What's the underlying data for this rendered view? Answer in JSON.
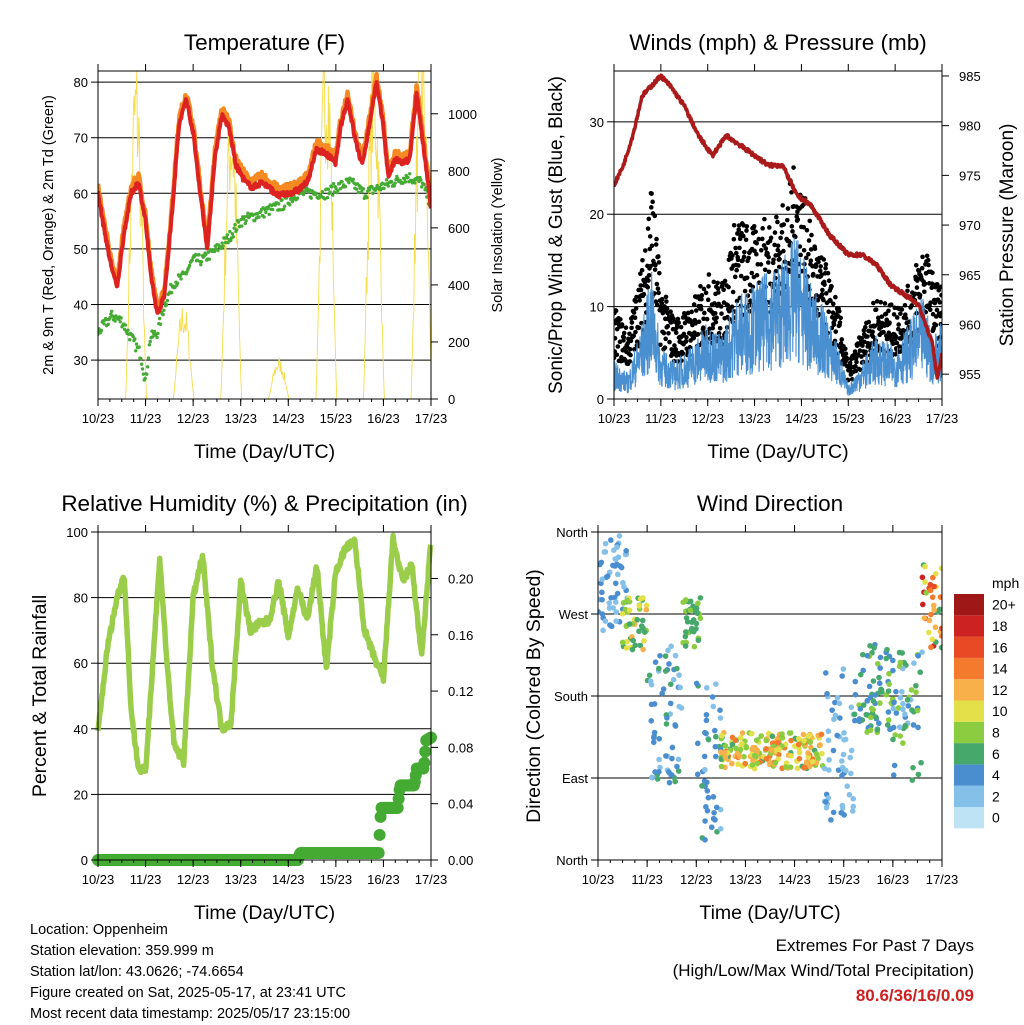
{
  "chart_data": [
    {
      "type": "line",
      "title": "Temperature (F)",
      "xlabel": "Time (Day/UTC)",
      "ylabel": "2m & 9m T (Red, Orange) & 2m Td (Green)",
      "y2label": "Solar Insolation (Yellow)",
      "x_ticks": [
        "10/23",
        "11/23",
        "12/23",
        "13/23",
        "14/23",
        "15/23",
        "16/23",
        "17/23"
      ],
      "ylim": [
        23,
        82
      ],
      "y_ticks": [
        30,
        40,
        50,
        60,
        70,
        80
      ],
      "y2lim": [
        0,
        1150
      ],
      "y2_ticks": [
        0,
        200,
        400,
        600,
        800,
        1000
      ],
      "grid": true,
      "colors": {
        "t2m": "#dd2222",
        "t9m": "#f58a22",
        "td": "#44aa33",
        "solar": "#f5dc4a"
      },
      "series": [
        {
          "key": "t2m",
          "x": [
            0,
            0.1,
            0.25,
            0.4,
            0.55,
            0.7,
            0.85,
            1.0,
            1.1,
            1.25,
            1.4,
            1.55,
            1.7,
            1.85,
            2.0,
            2.15,
            2.3,
            2.45,
            2.6,
            2.75,
            2.9,
            3.1,
            3.25,
            3.45,
            3.6,
            3.8,
            4.0,
            4.2,
            4.4,
            4.6,
            4.8,
            5.0,
            5.1,
            5.25,
            5.4,
            5.55,
            5.7,
            5.85,
            6.0,
            6.1,
            6.25,
            6.4,
            6.55,
            6.7,
            6.85,
            6.95,
            7.0
          ],
          "values": [
            60,
            55,
            48,
            43,
            53,
            60,
            62,
            55,
            46,
            38,
            42,
            56,
            72,
            77,
            71,
            60,
            50,
            66,
            74,
            72,
            65,
            62,
            61,
            62,
            61,
            59.5,
            60,
            60.5,
            62,
            68,
            67,
            65.5,
            72,
            77,
            70,
            65,
            72,
            80,
            72,
            63,
            66,
            65.5,
            66,
            78,
            68,
            61,
            57
          ]
        },
        {
          "key": "td",
          "x": [
            0,
            0.3,
            0.5,
            0.7,
            0.9,
            1.0,
            1.1,
            1.25,
            1.4,
            1.6,
            1.8,
            2.0,
            2.2,
            2.5,
            2.75,
            3.0,
            3.3,
            3.6,
            3.9,
            4.2,
            4.5,
            4.8,
            5.0,
            5.3,
            5.6,
            5.9,
            6.2,
            6.5,
            6.8,
            7.0
          ],
          "values": [
            35,
            38,
            37,
            34,
            31,
            26,
            34,
            35,
            40,
            44,
            45,
            48,
            48,
            50,
            52,
            55,
            56,
            57,
            58,
            60,
            60,
            60,
            61,
            62,
            60,
            61,
            62,
            63,
            62,
            58
          ]
        },
        {
          "key": "solar",
          "x": [
            0.58,
            0.8,
            1.02,
            1.58,
            1.8,
            2.02,
            2.58,
            2.8,
            3.02,
            3.58,
            3.8,
            4.02,
            4.58,
            4.8,
            5.02,
            5.58,
            5.8,
            6.02,
            6.58,
            6.8,
            7.02
          ],
          "values": [
            0,
            1000,
            0,
            0,
            280,
            0,
            0,
            900,
            0,
            0,
            120,
            0,
            0,
            1100,
            0,
            0,
            1050,
            0,
            0,
            1100,
            0
          ]
        }
      ]
    },
    {
      "type": "line",
      "title": "Winds (mph) & Pressure (mb)",
      "xlabel": "Time (Day/UTC)",
      "ylabel": "Sonic/Prop Wind & Gust (Blue, Black)",
      "y2label": "Station Pressure (Maroon)",
      "x_ticks": [
        "10/23",
        "11/23",
        "12/23",
        "13/23",
        "14/23",
        "15/23",
        "16/23",
        "17/23"
      ],
      "ylim": [
        0,
        35.5
      ],
      "y_ticks": [
        0,
        10,
        20,
        30
      ],
      "y2lim": [
        952.5,
        985.5
      ],
      "y2_ticks": [
        955,
        960,
        965,
        970,
        975,
        980,
        985
      ],
      "grid": true,
      "colors": {
        "wind": "#4a90d0",
        "gust": "#000000",
        "pressure": "#aa1a1a"
      },
      "series": [
        {
          "key": "wind",
          "x": [
            0,
            0.3,
            0.6,
            0.8,
            1.0,
            1.3,
            1.6,
            2.0,
            2.3,
            2.6,
            3.0,
            3.3,
            3.6,
            3.9,
            4.2,
            4.5,
            4.8,
            5.0,
            5.3,
            5.6,
            6.0,
            6.3,
            6.6,
            6.8,
            7.0
          ],
          "values": [
            3,
            2,
            6,
            10,
            4,
            3,
            4,
            6,
            5,
            8,
            9,
            10,
            11,
            13,
            9,
            7,
            4,
            1,
            3,
            5,
            4,
            6,
            8,
            5,
            6
          ]
        },
        {
          "key": "gust",
          "x": [
            0,
            0.3,
            0.6,
            0.8,
            1.0,
            1.3,
            1.6,
            2.0,
            2.3,
            2.6,
            3.0,
            3.3,
            3.6,
            3.9,
            4.2,
            4.5,
            4.8,
            5.0,
            5.3,
            5.6,
            6.0,
            6.3,
            6.6,
            6.8,
            7.0
          ],
          "values": [
            8,
            6,
            12,
            20,
            10,
            7,
            8,
            11,
            10,
            16,
            15,
            16,
            17,
            21,
            15,
            12,
            8,
            3,
            6,
            9,
            8,
            10,
            14,
            11,
            10
          ]
        },
        {
          "key": "pressure",
          "x": [
            0,
            0.2,
            0.4,
            0.6,
            0.8,
            1.0,
            1.2,
            1.5,
            1.8,
            2.1,
            2.4,
            2.7,
            3.0,
            3.3,
            3.6,
            3.9,
            4.2,
            4.6,
            5.0,
            5.3,
            5.6,
            5.9,
            6.2,
            6.5,
            6.8,
            6.9,
            7.0
          ],
          "values": [
            974,
            976,
            979,
            983,
            984,
            985,
            984,
            982,
            979,
            977,
            979,
            978,
            977,
            976,
            976,
            973,
            972,
            969,
            967,
            967,
            966,
            964,
            963,
            962,
            958,
            954.5,
            957
          ]
        }
      ]
    },
    {
      "type": "line",
      "title": "Relative Humidity (%) & Precipitation (in)",
      "xlabel": "Time (Day/UTC)",
      "ylabel": "Percent & Total Rainfall",
      "x_ticks": [
        "10/23",
        "11/23",
        "12/23",
        "13/23",
        "14/23",
        "15/23",
        "16/23",
        "17/23"
      ],
      "ylim": [
        0,
        100
      ],
      "y_ticks": [
        0,
        20,
        40,
        60,
        80,
        100
      ],
      "y2lim": [
        0,
        0.233
      ],
      "y2_ticks": [
        "0.00",
        "0.04",
        "0.08",
        "0.12",
        "0.16",
        "0.20"
      ],
      "grid": true,
      "colors": {
        "rh": "#9acd4a",
        "precip": "#44aa33"
      },
      "series": [
        {
          "key": "rh",
          "x": [
            0,
            0.2,
            0.4,
            0.55,
            0.7,
            0.85,
            1.0,
            1.15,
            1.3,
            1.45,
            1.6,
            1.8,
            2.0,
            2.2,
            2.4,
            2.6,
            2.8,
            3.0,
            3.2,
            3.4,
            3.6,
            3.8,
            4.0,
            4.2,
            4.4,
            4.6,
            4.8,
            5.0,
            5.2,
            5.4,
            5.6,
            5.8,
            6.0,
            6.2,
            6.4,
            6.6,
            6.8,
            7.0
          ],
          "values": [
            39,
            65,
            80,
            87,
            45,
            28,
            27,
            60,
            92,
            60,
            35,
            30,
            80,
            93,
            60,
            40,
            42,
            85,
            70,
            72,
            73,
            85,
            68,
            83,
            73,
            90,
            58,
            88,
            95,
            97,
            70,
            62,
            55,
            98,
            85,
            90,
            62,
            97
          ]
        },
        {
          "key": "precip",
          "x": [
            0,
            4.2,
            4.25,
            5.9,
            5.95,
            6.3,
            6.35,
            6.65,
            6.7,
            6.85,
            6.9,
            7.0
          ],
          "values": [
            0,
            0,
            0.005,
            0.005,
            0.037,
            0.037,
            0.053,
            0.053,
            0.065,
            0.065,
            0.085,
            0.087
          ]
        }
      ]
    },
    {
      "type": "scatter",
      "title": "Wind Direction",
      "xlabel": "Time (Day/UTC)",
      "ylabel": "Direction (Colored By Speed)",
      "x_ticks": [
        "10/23",
        "11/23",
        "12/23",
        "13/23",
        "14/23",
        "15/23",
        "16/23",
        "17/23"
      ],
      "y_ticks": [
        "North",
        "East",
        "South",
        "West",
        "North"
      ],
      "y_tick_values": [
        0,
        90,
        180,
        270,
        360
      ],
      "ylim": [
        0,
        360
      ],
      "grid": true,
      "legend_title": "mph",
      "legend_labels": [
        "0",
        "2",
        "4",
        "6",
        "8",
        "10",
        "12",
        "14",
        "16",
        "18",
        "20+"
      ],
      "legend_colors": [
        "#bde3f5",
        "#85c0e8",
        "#4a8ed0",
        "#46a86a",
        "#8ccc40",
        "#e4e04a",
        "#f8b04a",
        "#f47a2e",
        "#e84a26",
        "#cc2222",
        "#9e1818"
      ],
      "clusters": [
        {
          "x": [
            0.0,
            0.6
          ],
          "dir": [
            250,
            360
          ],
          "speed": [
            1,
            5
          ]
        },
        {
          "x": [
            0.5,
            1.0
          ],
          "dir": [
            230,
            290
          ],
          "speed": [
            5,
            12
          ]
        },
        {
          "x": [
            1.0,
            1.7
          ],
          "dir": [
            80,
            240
          ],
          "speed": [
            2,
            6
          ]
        },
        {
          "x": [
            1.7,
            2.1
          ],
          "dir": [
            230,
            290
          ],
          "speed": [
            5,
            9
          ]
        },
        {
          "x": [
            2.0,
            2.5
          ],
          "dir": [
            20,
            200
          ],
          "speed": [
            2,
            6
          ]
        },
        {
          "x": [
            2.5,
            4.6
          ],
          "dir": [
            100,
            140
          ],
          "speed": [
            6,
            15
          ]
        },
        {
          "x": [
            4.6,
            5.2
          ],
          "dir": [
            40,
            210
          ],
          "speed": [
            1,
            4
          ]
        },
        {
          "x": [
            5.2,
            6.0
          ],
          "dir": [
            140,
            240
          ],
          "speed": [
            3,
            8
          ]
        },
        {
          "x": [
            6.0,
            6.6
          ],
          "dir": [
            80,
            230
          ],
          "speed": [
            2,
            9
          ]
        },
        {
          "x": [
            6.6,
            7.0
          ],
          "dir": [
            230,
            330
          ],
          "speed": [
            5,
            18
          ]
        }
      ]
    }
  ],
  "info": {
    "location": "Location: Oppenheim",
    "elevation": "Station elevation: 359.999 m",
    "latlon": "Station lat/lon: 43.0626; -74.6654",
    "created": "Figure created on Sat, 2025-05-17, at 23:41 UTC",
    "recent": "Most recent data timestamp: 2025/05/17 23:15:00"
  },
  "extremes": {
    "line1": "Extremes For Past 7 Days",
    "line2": "(High/Low/Max Wind/Total Precipitation)",
    "values": "80.6/36/16/0.09"
  }
}
